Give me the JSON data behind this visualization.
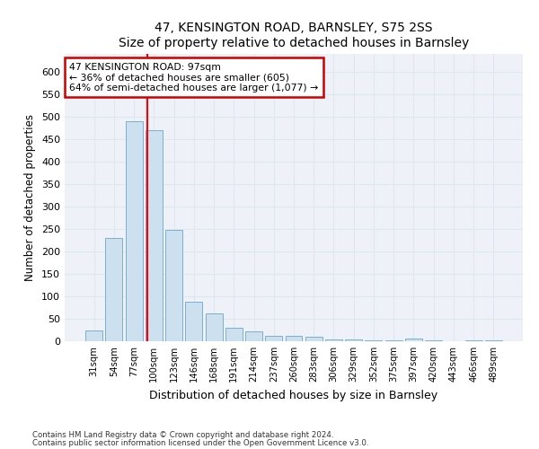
{
  "title": "47, KENSINGTON ROAD, BARNSLEY, S75 2SS",
  "subtitle": "Size of property relative to detached houses in Barnsley",
  "xlabel": "Distribution of detached houses by size in Barnsley",
  "ylabel": "Number of detached properties",
  "categories": [
    "31sqm",
    "54sqm",
    "77sqm",
    "100sqm",
    "123sqm",
    "146sqm",
    "168sqm",
    "191sqm",
    "214sqm",
    "237sqm",
    "260sqm",
    "283sqm",
    "306sqm",
    "329sqm",
    "352sqm",
    "375sqm",
    "397sqm",
    "420sqm",
    "443sqm",
    "466sqm",
    "489sqm"
  ],
  "values": [
    25,
    230,
    490,
    470,
    248,
    88,
    62,
    30,
    22,
    12,
    12,
    10,
    5,
    4,
    3,
    2,
    6,
    2,
    1,
    3,
    3
  ],
  "bar_color": "#cce0f0",
  "bar_edge_color": "#7ab0d4",
  "grid_color": "#dce8f0",
  "red_line_x": 2.67,
  "annotation_line1": "47 KENSINGTON ROAD: 97sqm",
  "annotation_line2": "← 36% of detached houses are smaller (605)",
  "annotation_line3": "64% of semi-detached houses are larger (1,077) →",
  "annotation_box_color": "#ffffff",
  "annotation_box_edge": "#cc0000",
  "footer1": "Contains HM Land Registry data © Crown copyright and database right 2024.",
  "footer2": "Contains public sector information licensed under the Open Government Licence v3.0.",
  "ylim": [
    0,
    640
  ],
  "yticks": [
    0,
    50,
    100,
    150,
    200,
    250,
    300,
    350,
    400,
    450,
    500,
    550,
    600
  ],
  "background_color": "#ffffff",
  "plot_bg_color": "#eef2f8"
}
